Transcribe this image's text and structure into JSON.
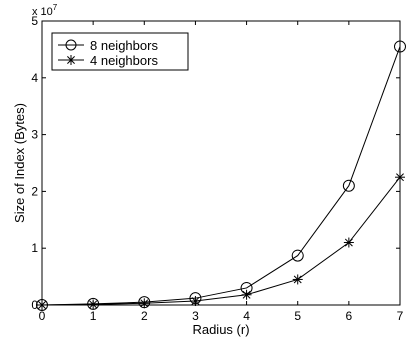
{
  "chart_data": {
    "type": "line",
    "xlabel": "Radius (r)",
    "ylabel": "Size of Index (Bytes)",
    "multiplier": {
      "base": "x 10",
      "exponent": "7"
    },
    "x": [
      0,
      1,
      2,
      3,
      4,
      5,
      6,
      7
    ],
    "xlim": [
      0,
      7
    ],
    "ylim": [
      0,
      5
    ],
    "xticks": [
      "0",
      "1",
      "2",
      "3",
      "4",
      "5",
      "6",
      "7"
    ],
    "yticks": [
      "0",
      "1",
      "2",
      "3",
      "4",
      "5"
    ],
    "grid": false,
    "legend_position": "top-left",
    "series": [
      {
        "name": "8 neighbors",
        "marker": "circle",
        "values": [
          0.0,
          0.02,
          0.05,
          0.12,
          0.3,
          0.87,
          2.1,
          4.55
        ]
      },
      {
        "name": "4 neighbors",
        "marker": "star",
        "values": [
          0.0,
          0.01,
          0.03,
          0.07,
          0.18,
          0.45,
          1.1,
          2.25
        ]
      }
    ]
  }
}
